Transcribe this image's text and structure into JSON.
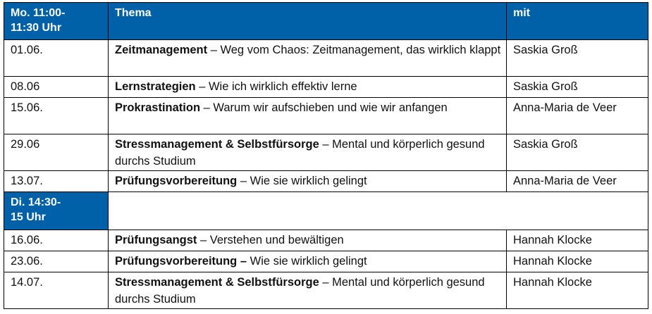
{
  "blocks": [
    {
      "time_label": "Mo. 11:00-\n11:30 Uhr",
      "time_line1": "Mo. 11:00-",
      "time_line2": "11:30 Uhr",
      "header_thema": "Thema",
      "header_mit": "mit",
      "rows": [
        {
          "date": "01.06.",
          "topic": "Zeitmanagement",
          "sep": " – ",
          "desc": "Weg vom Chaos: Zeitmanagement, das wirklich klappt",
          "speaker": "Saskia Groß"
        },
        {
          "date": "08.06",
          "topic": "Lernstrategien",
          "sep": " – ",
          "desc": "Wie ich wirklich effektiv lerne",
          "speaker": "Saskia Groß"
        },
        {
          "date": "15.06.",
          "topic": "Prokrastination",
          "sep": " – ",
          "desc": "Warum wir aufschieben und wie wir anfangen",
          "speaker": "Anna-Maria de Veer"
        },
        {
          "date": "29.06",
          "topic": "Stressmanagement & Selbstfürsorge",
          "sep": " – ",
          "desc": "Mental und körperlich gesund durchs Studium",
          "speaker": "Saskia Groß"
        },
        {
          "date": "13.07.",
          "topic": "Prüfungsvorbereitung",
          "sep": " – ",
          "desc": "Wie sie wirklich gelingt",
          "speaker": "Anna-Maria de Veer"
        }
      ]
    },
    {
      "time_line1": "Di. 14:30-",
      "time_line2": "15 Uhr",
      "rows": [
        {
          "date": "16.06.",
          "topic": "Prüfungsangst",
          "sep": " – ",
          "desc": "Verstehen und bewältigen",
          "speaker": "Hannah Klocke"
        },
        {
          "date": "23.06.",
          "topic": "Prüfungsvorbereitung –",
          "sep": " ",
          "desc": "Wie sie wirklich gelingt",
          "speaker": "Hannah Klocke"
        },
        {
          "date": "14.07.",
          "topic": "Stressmanagement & Selbstfürsorge",
          "sep": " – ",
          "desc": "Mental und körperlich gesund durchs Studium",
          "speaker": "Hannah Klocke"
        }
      ]
    }
  ],
  "colors": {
    "header_bg": "#0061a8",
    "header_text": "#ffffff"
  }
}
